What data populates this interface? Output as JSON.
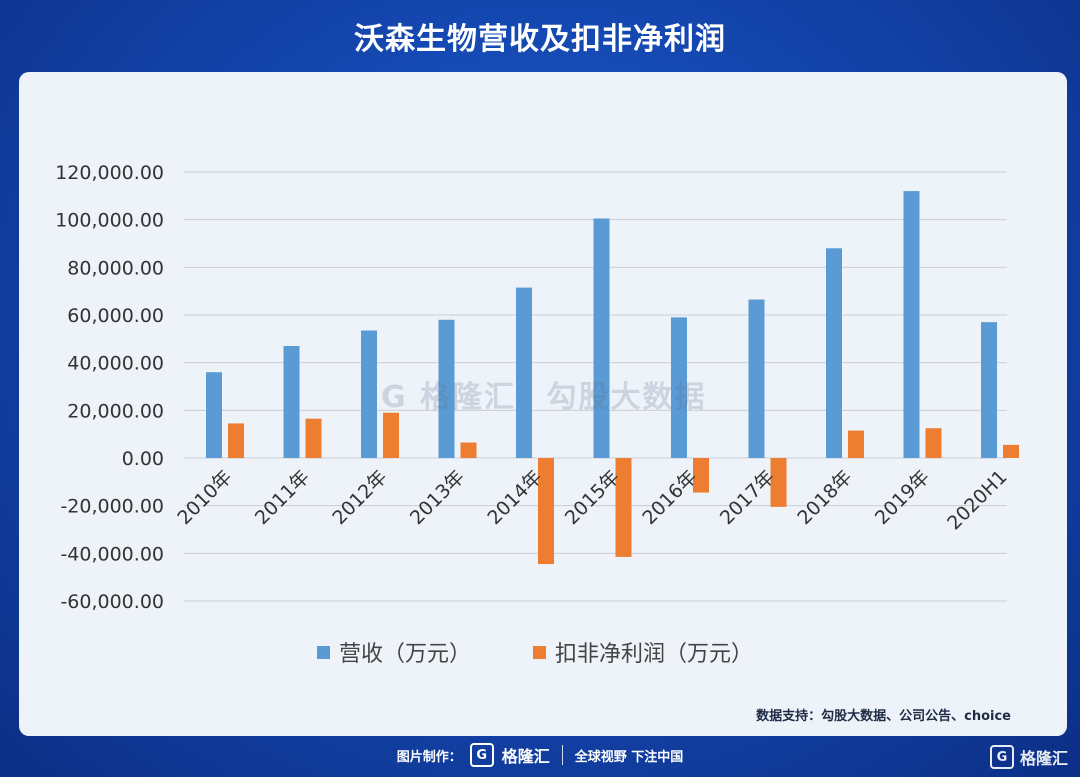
{
  "header": {
    "title": "沃森生物营收及扣非净利润"
  },
  "chart_data": {
    "type": "bar",
    "categories": [
      "2010年",
      "2011年",
      "2012年",
      "2013年",
      "2014年",
      "2015年",
      "2016年",
      "2017年",
      "2018年",
      "2019年",
      "2020H1"
    ],
    "series": [
      {
        "name": "营收（万元）",
        "color": "#5b9bd5",
        "values": [
          36000,
          47000,
          53500,
          58000,
          71500,
          100500,
          59000,
          66500,
          88000,
          112000,
          57000
        ]
      },
      {
        "name": "扣非净利润（万元）",
        "color": "#ed7d31",
        "values": [
          14500,
          16500,
          19000,
          6500,
          -44500,
          -41500,
          -14500,
          -20500,
          11500,
          12500,
          5500
        ]
      }
    ],
    "yticks": [
      "120,000.00",
      "100,000.00",
      "80,000.00",
      "60,000.00",
      "40,000.00",
      "20,000.00",
      "0.00",
      "-20,000.00",
      "-40,000.00",
      "-60,000.00"
    ],
    "ylim": [
      -60000,
      120000
    ],
    "grid": true,
    "legend_position": "bottom"
  },
  "source_note": "数据支持：勾股大数据、公司公告、choice",
  "watermark": {
    "logo": "G",
    "brand": "格隆汇",
    "text": "勾股大数据"
  },
  "footer": {
    "made_by": "图片制作：",
    "logo": "G",
    "brand": "格隆汇",
    "slogan": "全球视野 下注中国"
  },
  "corner_logo": {
    "logo": "G",
    "brand": "格隆汇"
  }
}
